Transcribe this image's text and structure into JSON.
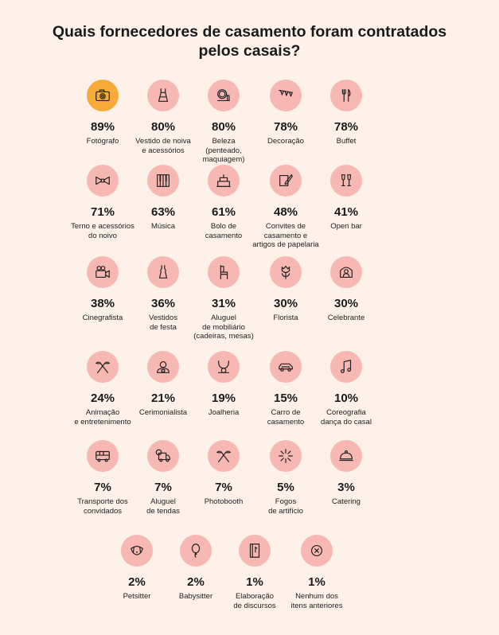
{
  "title": "Quais fornecedores de casamento foram contratados\npelos casais?",
  "colors": {
    "background": "#fdf1ea",
    "circle": "#f7b7b3",
    "highlight": "#f7a93a"
  },
  "chart_data": {
    "type": "table",
    "unit": "%",
    "items": [
      {
        "value": 89,
        "pct": "89%",
        "label": "Fotógrafo",
        "icon": "camera-icon",
        "highlight": true
      },
      {
        "value": 80,
        "pct": "80%",
        "label": "Vestido de noiva\ne acessórios",
        "icon": "wedding-dress-icon"
      },
      {
        "value": 80,
        "pct": "80%",
        "label": "Beleza\n(penteado,\nmaquiagem)",
        "icon": "mirror-icon"
      },
      {
        "value": 78,
        "pct": "78%",
        "label": "Decoração",
        "icon": "bunting-icon"
      },
      {
        "value": 78,
        "pct": "78%",
        "label": "Buffet",
        "icon": "cutlery-icon"
      },
      {
        "value": 71,
        "pct": "71%",
        "label": "Terno e acessórios\ndo noivo",
        "icon": "bow-tie-icon"
      },
      {
        "value": 63,
        "pct": "63%",
        "label": "Música",
        "icon": "piano-icon"
      },
      {
        "value": 61,
        "pct": "61%",
        "label": "Bolo de\ncasamento",
        "icon": "cake-icon"
      },
      {
        "value": 48,
        "pct": "48%",
        "label": "Convites de\ncasamento e\nartigos de papelaria",
        "icon": "pen-paper-icon"
      },
      {
        "value": 41,
        "pct": "41%",
        "label": "Open bar",
        "icon": "champagne-icon"
      },
      {
        "value": 38,
        "pct": "38%",
        "label": "Cinegrafista",
        "icon": "video-camera-icon"
      },
      {
        "value": 36,
        "pct": "36%",
        "label": "Vestidos\nde festa",
        "icon": "dress-icon"
      },
      {
        "value": 31,
        "pct": "31%",
        "label": "Aluguel\nde mobiliário\n(cadeiras, mesas)",
        "icon": "chair-icon"
      },
      {
        "value": 30,
        "pct": "30%",
        "label": "Florista",
        "icon": "tulip-icon"
      },
      {
        "value": 30,
        "pct": "30%",
        "label": "Celebrante",
        "icon": "officiant-icon"
      },
      {
        "value": 24,
        "pct": "24%",
        "label": "Animação\ne entretenimento",
        "icon": "party-icon"
      },
      {
        "value": 21,
        "pct": "21%",
        "label": "Cerimonialista",
        "icon": "planner-icon"
      },
      {
        "value": 19,
        "pct": "19%",
        "label": "Joalheria",
        "icon": "necklace-icon"
      },
      {
        "value": 15,
        "pct": "15%",
        "label": "Carro de\ncasamento",
        "icon": "car-icon"
      },
      {
        "value": 10,
        "pct": "10%",
        "label": "Coreografia\ndança do casal",
        "icon": "music-note-icon"
      },
      {
        "value": 7,
        "pct": "7%",
        "label": "Transporte dos\nconvidados",
        "icon": "bus-icon"
      },
      {
        "value": 7,
        "pct": "7%",
        "label": "Aluguel\nde tendas",
        "icon": "truck-icon"
      },
      {
        "value": 7,
        "pct": "7%",
        "label": "Photobooth",
        "icon": "party-icon"
      },
      {
        "value": 5,
        "pct": "5%",
        "label": "Fogos\nde artifício",
        "icon": "fireworks-icon"
      },
      {
        "value": 3,
        "pct": "3%",
        "label": "Catering",
        "icon": "cloche-icon"
      },
      {
        "value": 2,
        "pct": "2%",
        "label": "Petsitter",
        "icon": "dog-icon"
      },
      {
        "value": 2,
        "pct": "2%",
        "label": "Babysitter",
        "icon": "balloon-icon"
      },
      {
        "value": 1,
        "pct": "1%",
        "label": "Elaboração\nde discursos",
        "icon": "notebook-icon"
      },
      {
        "value": 1,
        "pct": "1%",
        "label": "Nenhum dos\nitens anteriores",
        "icon": "close-icon"
      }
    ]
  }
}
